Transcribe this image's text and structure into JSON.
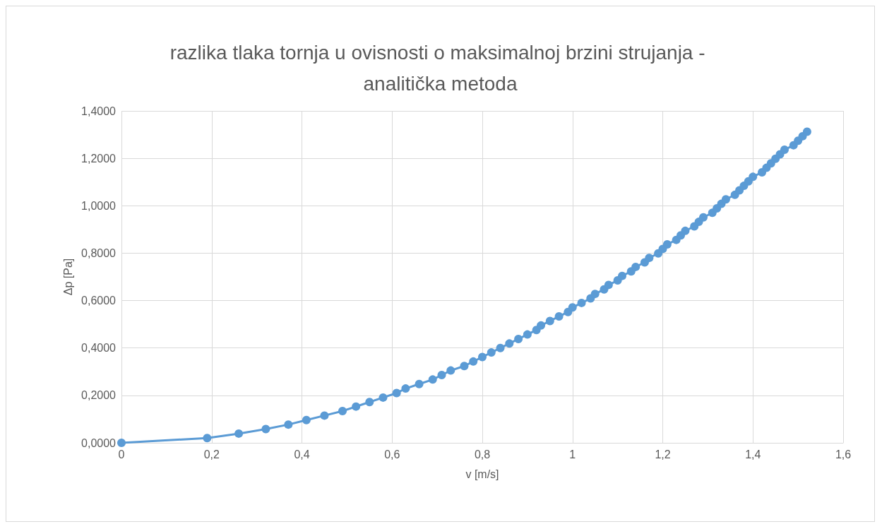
{
  "chart_data": {
    "type": "line",
    "title": "razlika tlaka tornja u ovisnosti o maksimalnoj brzini strujanja - analitička metoda",
    "xlabel": "v [m/s]",
    "ylabel": "Δp [Pa]",
    "x": [
      0,
      0.19,
      0.26,
      0.32,
      0.37,
      0.41,
      0.45,
      0.49,
      0.52,
      0.55,
      0.58,
      0.61,
      0.63,
      0.66,
      0.69,
      0.71,
      0.73,
      0.76,
      0.78,
      0.8,
      0.82,
      0.84,
      0.86,
      0.88,
      0.9,
      0.92,
      0.93,
      0.95,
      0.97,
      0.99,
      1.0,
      1.02,
      1.04,
      1.05,
      1.07,
      1.08,
      1.1,
      1.11,
      1.13,
      1.14,
      1.16,
      1.17,
      1.19,
      1.2,
      1.21,
      1.23,
      1.24,
      1.25,
      1.27,
      1.28,
      1.29,
      1.31,
      1.32,
      1.33,
      1.34,
      1.36,
      1.37,
      1.38,
      1.39,
      1.4,
      1.42,
      1.43,
      1.44,
      1.45,
      1.46,
      1.47,
      1.49,
      1.5,
      1.51,
      1.52
    ],
    "series": [
      {
        "color": "#5b9bd5",
        "values": [
          0,
          0.02,
          0.039,
          0.058,
          0.077,
          0.096,
          0.115,
          0.134,
          0.153,
          0.172,
          0.191,
          0.21,
          0.229,
          0.248,
          0.267,
          0.286,
          0.305,
          0.324,
          0.343,
          0.362,
          0.381,
          0.4,
          0.419,
          0.438,
          0.457,
          0.476,
          0.495,
          0.514,
          0.533,
          0.552,
          0.571,
          0.59,
          0.609,
          0.628,
          0.647,
          0.666,
          0.685,
          0.704,
          0.723,
          0.742,
          0.761,
          0.78,
          0.799,
          0.818,
          0.837,
          0.856,
          0.875,
          0.894,
          0.913,
          0.932,
          0.951,
          0.97,
          0.989,
          1.008,
          1.027,
          1.046,
          1.065,
          1.084,
          1.103,
          1.122,
          1.141,
          1.16,
          1.179,
          1.198,
          1.217,
          1.236,
          1.255,
          1.274,
          1.293,
          1.312
        ]
      }
    ],
    "xlim": [
      0,
      1.6
    ],
    "xticks": [
      0,
      {
        "value": 0.2,
        "label": "0,2"
      },
      {
        "value": 0.4,
        "label": "0,4"
      },
      {
        "value": 0.6,
        "label": "0,6"
      },
      {
        "value": 0.8,
        "label": "0,8"
      },
      1,
      {
        "value": 1.2,
        "label": "1,2"
      },
      {
        "value": 1.4,
        "label": "1,4"
      },
      {
        "value": 1.6,
        "label": "1,6"
      }
    ],
    "ylim": [
      0,
      1.4
    ],
    "yticks": [
      {
        "value": 0,
        "label": "0,0000"
      },
      {
        "value": 0.2,
        "label": "0,2000"
      },
      {
        "value": 0.4,
        "label": "0,4000"
      },
      {
        "value": 0.6,
        "label": "0,6000"
      },
      {
        "value": 0.8,
        "label": "0,8000"
      },
      {
        "value": 1,
        "label": "1,0000"
      },
      {
        "value": 1.2,
        "label": "1,2000"
      },
      {
        "value": 1.4,
        "label": "1,4000"
      }
    ],
    "grid": true,
    "marker": "circle",
    "line_style": "solid"
  }
}
